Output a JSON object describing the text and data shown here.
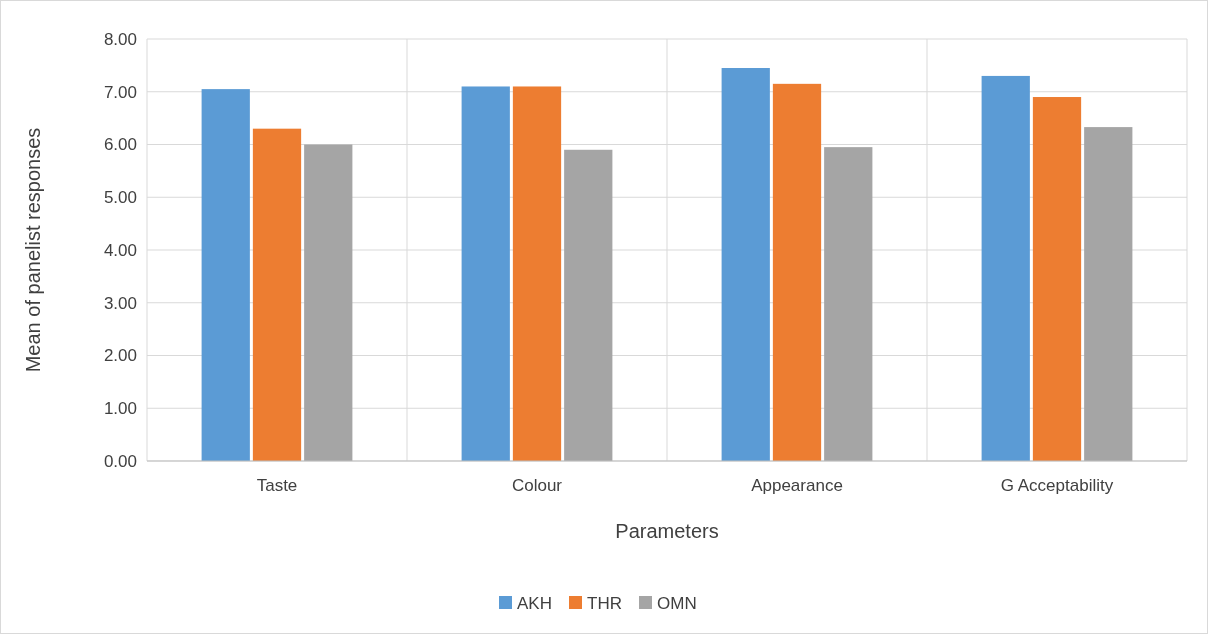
{
  "chart_data": {
    "type": "bar",
    "xlabel": "Parameters",
    "ylabel": "Mean of panelist responses",
    "categories": [
      "Taste",
      "Colour",
      "Appearance",
      "G Acceptability"
    ],
    "series": [
      {
        "name": "AKH",
        "color": "#5b9bd5",
        "values": [
          7.05,
          7.1,
          7.45,
          7.3
        ]
      },
      {
        "name": "THR",
        "color": "#ed7d31",
        "values": [
          6.3,
          7.1,
          7.15,
          6.9
        ]
      },
      {
        "name": "OMN",
        "color": "#a5a5a5",
        "values": [
          6.0,
          5.9,
          5.95,
          6.33
        ]
      }
    ],
    "ylim": [
      0,
      8
    ],
    "yticks": [
      {
        "value": 0,
        "label": "0.00"
      },
      {
        "value": 1,
        "label": "1.00"
      },
      {
        "value": 2,
        "label": "2.00"
      },
      {
        "value": 3,
        "label": "3.00"
      },
      {
        "value": 4,
        "label": "4.00"
      },
      {
        "value": 5,
        "label": "5.00"
      },
      {
        "value": 6,
        "label": "6.00"
      },
      {
        "value": 7,
        "label": "7.00"
      },
      {
        "value": 8,
        "label": "8.00"
      }
    ],
    "grid": true,
    "legend": "bottom"
  }
}
